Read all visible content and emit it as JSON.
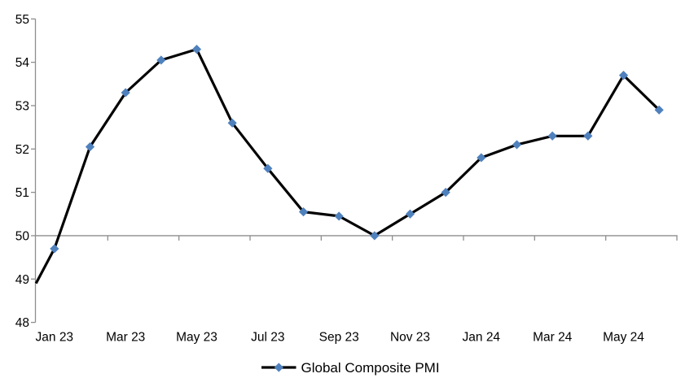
{
  "chart_data": {
    "type": "line",
    "title": "",
    "categories": [
      "Jan 23",
      "Feb 23",
      "Mar 23",
      "Apr 23",
      "May 23",
      "Jun 23",
      "Jul 23",
      "Aug 23",
      "Sep 23",
      "Oct 23",
      "Nov 23",
      "Dec 23",
      "Jan 24",
      "Feb 24",
      "Mar 24",
      "Apr 24",
      "May 24",
      "Jun 24"
    ],
    "series": [
      {
        "name": "Global Composite PMI",
        "values": [
          49.7,
          52.05,
          53.3,
          54.05,
          54.3,
          52.6,
          51.55,
          50.55,
          50.45,
          50.0,
          50.5,
          51.0,
          51.8,
          52.1,
          52.3,
          52.3,
          53.7,
          52.9
        ],
        "lead_in_value_at_left_edge": 48.9,
        "marker": "diamond"
      }
    ],
    "x_tick_labels": [
      "Jan 23",
      "Mar 23",
      "May 23",
      "Jul 23",
      "Sep 23",
      "Nov 23",
      "Jan 24",
      "Mar 24",
      "May 24"
    ],
    "y_ticks": [
      "48",
      "49",
      "50",
      "51",
      "52",
      "53",
      "54",
      "55"
    ],
    "ylim": [
      48,
      55
    ],
    "baseline_value": 50,
    "grid": "horizontal-reference-line-at-50-only",
    "legend": {
      "label": "Global Composite PMI",
      "position": "bottom-center"
    },
    "colors": {
      "line": "#000000",
      "marker_fill": "#4F81BD",
      "axis": "#8E8E8E",
      "text": "#000000",
      "background": "#FFFFFF"
    }
  }
}
